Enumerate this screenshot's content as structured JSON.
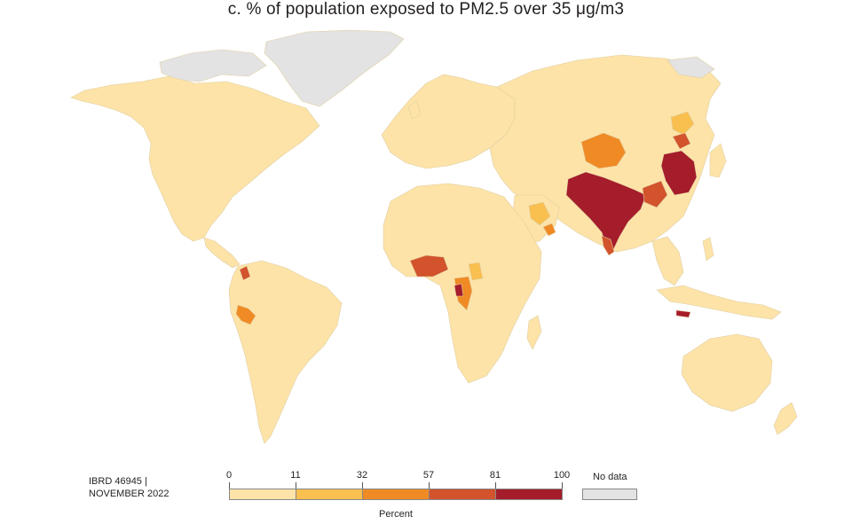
{
  "title": "c. % of population exposed to PM2.5 over 35 μg/m3",
  "map_credit": {
    "line1": "IBRD 46945 |",
    "line2": "NOVEMBER 2022"
  },
  "legend": {
    "breaks": [
      "0",
      "11",
      "32",
      "57",
      "81",
      "100"
    ],
    "bins": [
      {
        "from": 0,
        "to": 11,
        "color": "#fde3a7"
      },
      {
        "from": 11,
        "to": 32,
        "color": "#f9bf4f"
      },
      {
        "from": 32,
        "to": 57,
        "color": "#f08a24"
      },
      {
        "from": 57,
        "to": 81,
        "color": "#d2532c"
      },
      {
        "from": 81,
        "to": 100,
        "color": "#a51c2a"
      }
    ],
    "axis_label": "Percent",
    "no_data_label": "No data",
    "no_data_color": "#e3e3e3"
  },
  "colors": {
    "land_default": "#fde3a7",
    "border": "#d9c9a0",
    "no_data": "#e3e3e3",
    "bin1": "#fde3a7",
    "bin2": "#f9bf4f",
    "bin3": "#f08a24",
    "bin4": "#d2532c",
    "bin5": "#a51c2a"
  },
  "regions_highlighted": [
    {
      "name": "India",
      "bin": "81-100"
    },
    {
      "name": "Pakistan",
      "bin": "81-100"
    },
    {
      "name": "North China Plain",
      "bin": "81-100"
    },
    {
      "name": "Western China",
      "bin": "32-57"
    },
    {
      "name": "Nigeria",
      "bin": "57-81"
    },
    {
      "name": "Central Africa",
      "bin": "32-57"
    },
    {
      "name": "Arabian Peninsula",
      "bin": "11-32"
    },
    {
      "name": "Java",
      "bin": "81-100"
    },
    {
      "name": "Peru",
      "bin": "32-57"
    }
  ]
}
